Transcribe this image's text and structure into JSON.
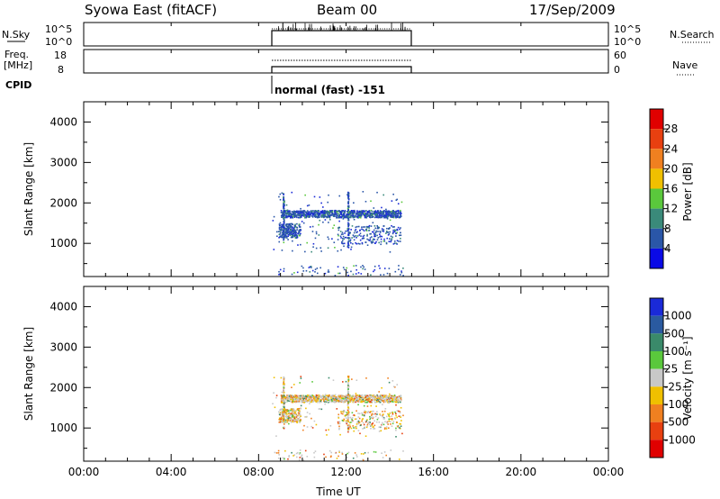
{
  "header": {
    "station": "Syowa East (fitACF)",
    "beam": "Beam 00",
    "date": "17/Sep/2009"
  },
  "top_panels": {
    "nsky_label": "N.Sky",
    "nsearch_label": "N.Search",
    "freq_label_line1": "Freq.",
    "freq_label_line2": "[MHz]",
    "nave_label": "Nave",
    "cpid_label": "CPID",
    "noise_ticks_left": [
      "10^5",
      "10^0"
    ],
    "noise_ticks_right": [
      "10^5",
      "10^0"
    ],
    "freq_ticks": [
      "18",
      "8"
    ],
    "nave_ticks": [
      "60",
      "0"
    ],
    "cpid_text": "normal (fast) -151"
  },
  "axes": {
    "x_ticks": [
      "00:00",
      "04:00",
      "08:00",
      "12:00",
      "16:00",
      "20:00",
      "00:00"
    ],
    "x_label": "Time UT",
    "y_label": "Slant Range [km]",
    "y_ticks": [
      "1000",
      "2000",
      "3000",
      "4000"
    ]
  },
  "colorbars": {
    "power": {
      "label": "Power [dB]",
      "ticks": [
        "4",
        "8",
        "12",
        "16",
        "20",
        "24",
        "28"
      ],
      "colors": [
        "#0a0ae6",
        "#2a56a8",
        "#3a8a7a",
        "#5ac83c",
        "#f0c000",
        "#f08020",
        "#e84010",
        "#e00000"
      ]
    },
    "velocity": {
      "label": "Velocity [m s⁻¹]",
      "ticks": [
        "1000",
        "500",
        "100",
        "25",
        "-25",
        "-100",
        "-500",
        "-1000"
      ],
      "colors": [
        "#1a2ad8",
        "#2a5aa0",
        "#3a8a6a",
        "#5ac83c",
        "#c8c8c8",
        "#f0c000",
        "#f08020",
        "#e84010",
        "#e00000"
      ]
    }
  },
  "chart_data": [
    {
      "type": "heatmap",
      "title": "Power",
      "x_range_hours": [
        0,
        24
      ],
      "y_range_km": [
        180,
        4500
      ],
      "color_scale": "Power [dB]",
      "scatter_region": {
        "time_start_hours": 8.5,
        "time_end_hours": 14.6,
        "range_band_km": [
          800,
          2300
        ],
        "dominant_value_db": "4-8"
      }
    },
    {
      "type": "heatmap",
      "title": "Velocity",
      "x_range_hours": [
        0,
        24
      ],
      "y_range_km": [
        180,
        4500
      ],
      "color_scale": "Velocity [m s-1]",
      "scatter_region": {
        "time_start_hours": 8.5,
        "time_end_hours": 14.6,
        "range_band_km": [
          800,
          2300
        ],
        "dominant_value_ms": "-25 to 25"
      }
    }
  ]
}
